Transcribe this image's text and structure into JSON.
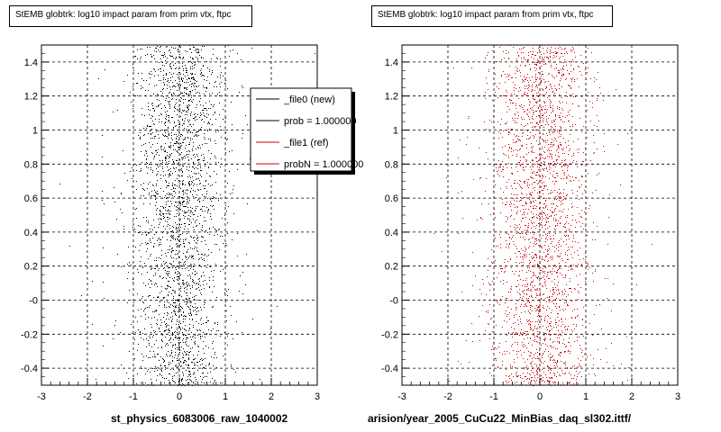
{
  "chart_data": [
    {
      "type": "scatter",
      "title": "StEMB globtrk: log10 impact param from prim vtx, ftpc",
      "xlabel": "st_physics_6083006_raw_1040002",
      "ylabel": "",
      "xlim": [
        -3,
        3
      ],
      "ylim": [
        -0.5,
        1.5
      ],
      "x_ticks": [
        "-3",
        "-2",
        "-1",
        "0",
        "1",
        "2",
        "3"
      ],
      "y_ticks": [
        "-0.4",
        "-0.2",
        "-0",
        "0.2",
        "0.4",
        "0.6",
        "0.8",
        "1",
        "1.2",
        "1.4"
      ],
      "grid": true,
      "point_color": "#000000",
      "distribution": {
        "x_center": 0.0,
        "x_spread": 0.45,
        "n_points": 2600
      },
      "legend": {
        "placement": "top-right",
        "entries": [
          {
            "label": "_file0 (new)",
            "color": "#000000"
          },
          {
            "label": "prob = 1.000000",
            "color": "#000000"
          },
          {
            "label": "_file1 (ref)",
            "color": "#cc0000"
          },
          {
            "label": "probN = 1.000000",
            "color": "#cc0000"
          }
        ]
      }
    },
    {
      "type": "scatter",
      "title": "StEMB globtrk: log10 impact param from prim vtx, ftpc",
      "xlabel": "arision/year_2005_CuCu22_MinBias_daq_sl302.ittf/",
      "ylabel": "",
      "xlim": [
        -3,
        3
      ],
      "ylim": [
        -0.5,
        1.5
      ],
      "x_ticks": [
        "-3",
        "-2",
        "-1",
        "0",
        "1",
        "2",
        "3"
      ],
      "y_ticks": [
        "-0.4",
        "-0.2",
        "-0",
        "0.2",
        "0.4",
        "0.6",
        "0.8",
        "1",
        "1.2",
        "1.4"
      ],
      "grid": true,
      "point_color": "#cc0000",
      "distribution": {
        "x_center": 0.0,
        "x_spread": 0.5,
        "n_points": 2600
      }
    }
  ]
}
